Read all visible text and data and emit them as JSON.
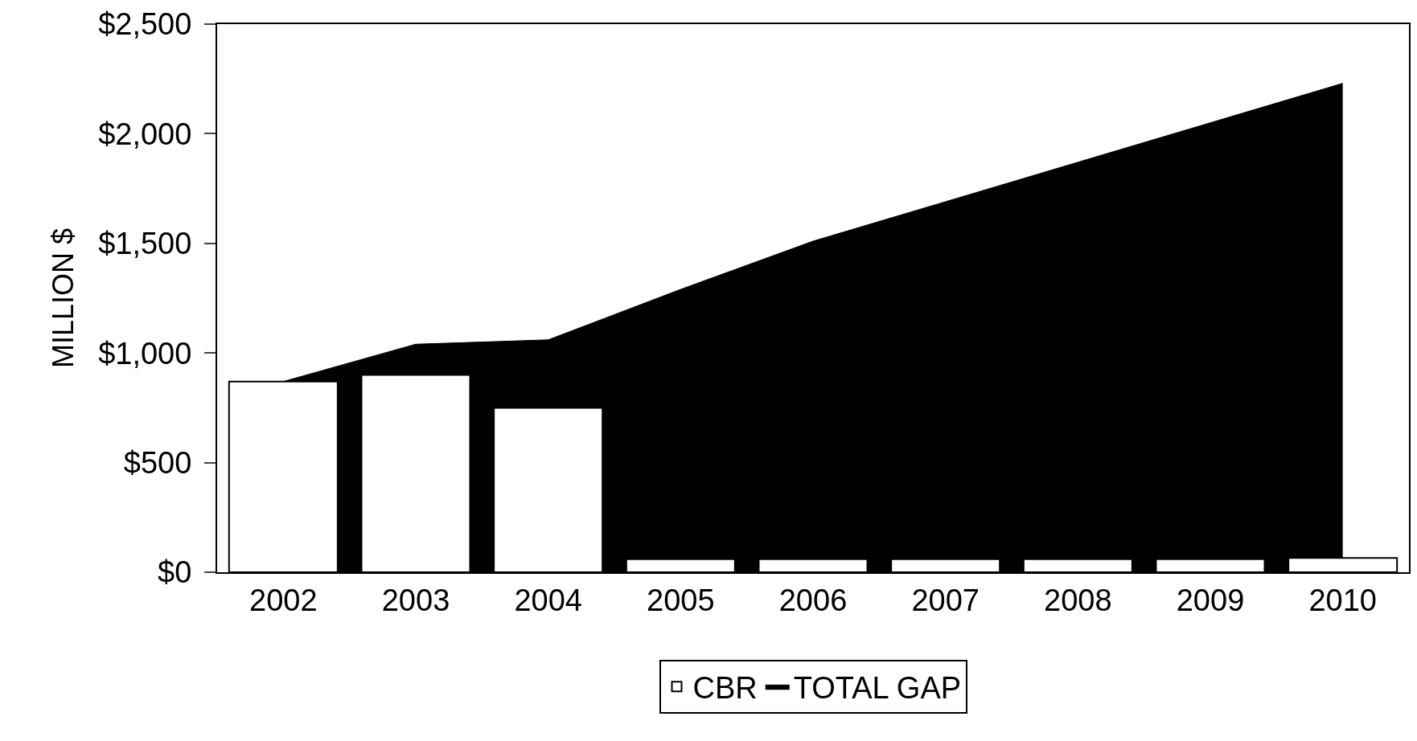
{
  "chart_data": {
    "type": "bar",
    "ylabel": "MILLION $",
    "categories": [
      "2002",
      "2003",
      "2004",
      "2005",
      "2006",
      "2007",
      "2008",
      "2009",
      "2010"
    ],
    "series": [
      {
        "name": "CBR",
        "color": "#ffffff",
        "values": [
          870,
          900,
          750,
          60,
          60,
          60,
          60,
          60,
          65
        ]
      },
      {
        "name": "TOTAL GAP",
        "type": "area",
        "color": "#000000",
        "values": [
          870,
          1040,
          1060,
          1290,
          1510,
          1690,
          1870,
          2050,
          2230
        ]
      }
    ],
    "ylim": [
      0,
      2500
    ],
    "yticks": [
      {
        "value": 0,
        "label": "$0"
      },
      {
        "value": 500,
        "label": "$500"
      },
      {
        "value": 1000,
        "label": "$1,000"
      },
      {
        "value": 1500,
        "label": "$1,500"
      },
      {
        "value": 2000,
        "label": "$2,000"
      },
      {
        "value": 2500,
        "label": "$2,500"
      }
    ],
    "grid": false,
    "legend": "bottom"
  }
}
